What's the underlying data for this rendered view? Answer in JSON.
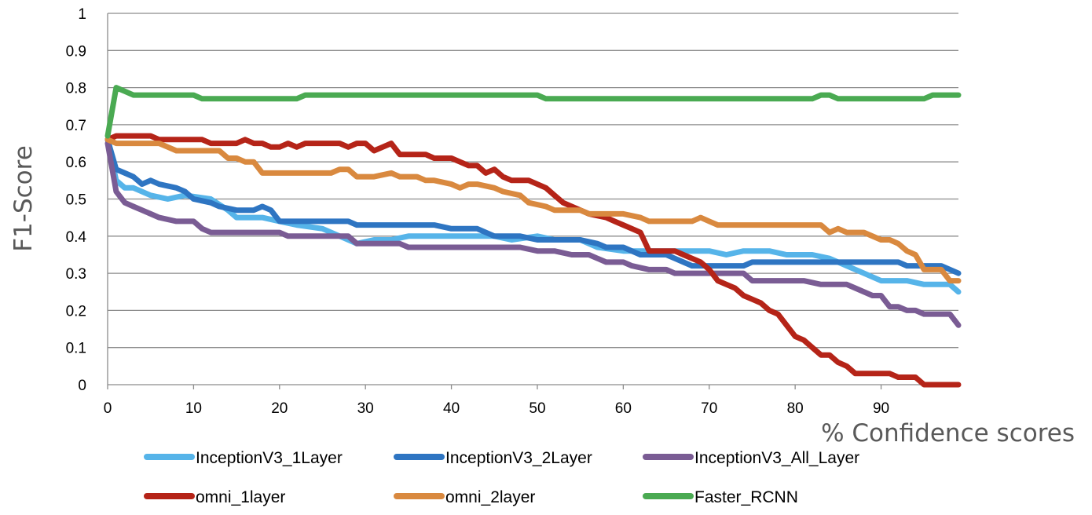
{
  "chart_data": {
    "type": "line",
    "title": "",
    "xlabel": "% Confidence scores",
    "ylabel": "F1-Score",
    "xlim": [
      0,
      99
    ],
    "ylim": [
      0,
      1
    ],
    "x_ticks": [
      "0",
      "10",
      "20",
      "30",
      "40",
      "50",
      "60",
      "70",
      "80",
      "90"
    ],
    "y_ticks": [
      "0",
      "0.1",
      "0.2",
      "0.3",
      "0.4",
      "0.5",
      "0.6",
      "0.7",
      "0.8",
      "0.9",
      "1"
    ],
    "grid": "horizontal",
    "legend_position": "bottom",
    "series": [
      {
        "name": "InceptionV3_1Layer",
        "color": "#56B4E9",
        "points": [
          [
            0,
            0.66
          ],
          [
            1,
            0.55
          ],
          [
            2,
            0.53
          ],
          [
            3,
            0.53
          ],
          [
            5,
            0.51
          ],
          [
            7,
            0.5
          ],
          [
            9,
            0.51
          ],
          [
            12,
            0.5
          ],
          [
            14,
            0.47
          ],
          [
            15,
            0.45
          ],
          [
            18,
            0.45
          ],
          [
            20,
            0.44
          ],
          [
            22,
            0.43
          ],
          [
            25,
            0.42
          ],
          [
            27,
            0.4
          ],
          [
            29,
            0.38
          ],
          [
            31,
            0.39
          ],
          [
            33,
            0.39
          ],
          [
            35,
            0.4
          ],
          [
            40,
            0.4
          ],
          [
            45,
            0.4
          ],
          [
            47,
            0.39
          ],
          [
            50,
            0.4
          ],
          [
            52,
            0.39
          ],
          [
            55,
            0.39
          ],
          [
            57,
            0.37
          ],
          [
            60,
            0.36
          ],
          [
            62,
            0.36
          ],
          [
            65,
            0.36
          ],
          [
            70,
            0.36
          ],
          [
            72,
            0.35
          ],
          [
            74,
            0.36
          ],
          [
            77,
            0.36
          ],
          [
            79,
            0.35
          ],
          [
            82,
            0.35
          ],
          [
            84,
            0.34
          ],
          [
            86,
            0.32
          ],
          [
            88,
            0.3
          ],
          [
            90,
            0.28
          ],
          [
            93,
            0.28
          ],
          [
            95,
            0.27
          ],
          [
            98,
            0.27
          ],
          [
            99,
            0.25
          ]
        ]
      },
      {
        "name": "InceptionV3_2Layer",
        "color": "#2E75C2",
        "points": [
          [
            0,
            0.66
          ],
          [
            1,
            0.58
          ],
          [
            2,
            0.57
          ],
          [
            3,
            0.56
          ],
          [
            4,
            0.54
          ],
          [
            5,
            0.55
          ],
          [
            6,
            0.54
          ],
          [
            8,
            0.53
          ],
          [
            9,
            0.52
          ],
          [
            10,
            0.5
          ],
          [
            12,
            0.49
          ],
          [
            13,
            0.48
          ],
          [
            15,
            0.47
          ],
          [
            17,
            0.47
          ],
          [
            18,
            0.48
          ],
          [
            19,
            0.47
          ],
          [
            20,
            0.44
          ],
          [
            22,
            0.44
          ],
          [
            25,
            0.44
          ],
          [
            28,
            0.44
          ],
          [
            29,
            0.43
          ],
          [
            32,
            0.43
          ],
          [
            35,
            0.43
          ],
          [
            38,
            0.43
          ],
          [
            40,
            0.42
          ],
          [
            43,
            0.42
          ],
          [
            45,
            0.4
          ],
          [
            48,
            0.4
          ],
          [
            50,
            0.39
          ],
          [
            52,
            0.39
          ],
          [
            55,
            0.39
          ],
          [
            57,
            0.38
          ],
          [
            58,
            0.37
          ],
          [
            60,
            0.37
          ],
          [
            62,
            0.35
          ],
          [
            65,
            0.35
          ],
          [
            66,
            0.34
          ],
          [
            67,
            0.33
          ],
          [
            68,
            0.32
          ],
          [
            70,
            0.32
          ],
          [
            72,
            0.32
          ],
          [
            74,
            0.32
          ],
          [
            75,
            0.33
          ],
          [
            80,
            0.33
          ],
          [
            85,
            0.33
          ],
          [
            90,
            0.33
          ],
          [
            92,
            0.33
          ],
          [
            93,
            0.32
          ],
          [
            97,
            0.32
          ],
          [
            99,
            0.3
          ]
        ]
      },
      {
        "name": "InceptionV3_All_Layer",
        "color": "#7A5C94",
        "points": [
          [
            0,
            0.65
          ],
          [
            1,
            0.52
          ],
          [
            2,
            0.49
          ],
          [
            3,
            0.48
          ],
          [
            4,
            0.47
          ],
          [
            5,
            0.46
          ],
          [
            6,
            0.45
          ],
          [
            8,
            0.44
          ],
          [
            10,
            0.44
          ],
          [
            11,
            0.42
          ],
          [
            12,
            0.41
          ],
          [
            15,
            0.41
          ],
          [
            17,
            0.41
          ],
          [
            20,
            0.41
          ],
          [
            21,
            0.4
          ],
          [
            25,
            0.4
          ],
          [
            28,
            0.4
          ],
          [
            29,
            0.38
          ],
          [
            32,
            0.38
          ],
          [
            34,
            0.38
          ],
          [
            35,
            0.37
          ],
          [
            40,
            0.37
          ],
          [
            45,
            0.37
          ],
          [
            48,
            0.37
          ],
          [
            50,
            0.36
          ],
          [
            52,
            0.36
          ],
          [
            54,
            0.35
          ],
          [
            56,
            0.35
          ],
          [
            58,
            0.33
          ],
          [
            60,
            0.33
          ],
          [
            61,
            0.32
          ],
          [
            63,
            0.31
          ],
          [
            65,
            0.31
          ],
          [
            66,
            0.3
          ],
          [
            70,
            0.3
          ],
          [
            72,
            0.3
          ],
          [
            74,
            0.3
          ],
          [
            75,
            0.28
          ],
          [
            78,
            0.28
          ],
          [
            81,
            0.28
          ],
          [
            83,
            0.27
          ],
          [
            86,
            0.27
          ],
          [
            87,
            0.26
          ],
          [
            89,
            0.24
          ],
          [
            90,
            0.24
          ],
          [
            91,
            0.21
          ],
          [
            92,
            0.21
          ],
          [
            93,
            0.2
          ],
          [
            94,
            0.2
          ],
          [
            95,
            0.19
          ],
          [
            98,
            0.19
          ],
          [
            99,
            0.16
          ]
        ]
      },
      {
        "name": "omni_1layer",
        "color": "#B52418",
        "points": [
          [
            0,
            0.66
          ],
          [
            1,
            0.67
          ],
          [
            5,
            0.67
          ],
          [
            6,
            0.66
          ],
          [
            10,
            0.66
          ],
          [
            11,
            0.66
          ],
          [
            12,
            0.65
          ],
          [
            15,
            0.65
          ],
          [
            16,
            0.66
          ],
          [
            17,
            0.65
          ],
          [
            18,
            0.65
          ],
          [
            19,
            0.64
          ],
          [
            20,
            0.64
          ],
          [
            21,
            0.65
          ],
          [
            22,
            0.64
          ],
          [
            23,
            0.65
          ],
          [
            25,
            0.65
          ],
          [
            27,
            0.65
          ],
          [
            28,
            0.64
          ],
          [
            29,
            0.65
          ],
          [
            30,
            0.65
          ],
          [
            31,
            0.63
          ],
          [
            32,
            0.64
          ],
          [
            33,
            0.65
          ],
          [
            34,
            0.62
          ],
          [
            37,
            0.62
          ],
          [
            38,
            0.61
          ],
          [
            40,
            0.61
          ],
          [
            41,
            0.6
          ],
          [
            42,
            0.59
          ],
          [
            43,
            0.59
          ],
          [
            44,
            0.57
          ],
          [
            45,
            0.58
          ],
          [
            46,
            0.56
          ],
          [
            47,
            0.55
          ],
          [
            49,
            0.55
          ],
          [
            50,
            0.54
          ],
          [
            51,
            0.53
          ],
          [
            52,
            0.51
          ],
          [
            53,
            0.49
          ],
          [
            55,
            0.47
          ],
          [
            56,
            0.46
          ],
          [
            58,
            0.45
          ],
          [
            59,
            0.44
          ],
          [
            60,
            0.43
          ],
          [
            61,
            0.42
          ],
          [
            62,
            0.41
          ],
          [
            63,
            0.36
          ],
          [
            65,
            0.36
          ],
          [
            66,
            0.36
          ],
          [
            67,
            0.35
          ],
          [
            68,
            0.34
          ],
          [
            69,
            0.33
          ],
          [
            70,
            0.31
          ],
          [
            71,
            0.28
          ],
          [
            72,
            0.27
          ],
          [
            73,
            0.26
          ],
          [
            74,
            0.24
          ],
          [
            75,
            0.23
          ],
          [
            76,
            0.22
          ],
          [
            77,
            0.2
          ],
          [
            78,
            0.19
          ],
          [
            79,
            0.16
          ],
          [
            80,
            0.13
          ],
          [
            81,
            0.12
          ],
          [
            82,
            0.1
          ],
          [
            83,
            0.08
          ],
          [
            84,
            0.08
          ],
          [
            85,
            0.06
          ],
          [
            86,
            0.05
          ],
          [
            87,
            0.03
          ],
          [
            90,
            0.03
          ],
          [
            91,
            0.03
          ],
          [
            92,
            0.02
          ],
          [
            94,
            0.02
          ],
          [
            95,
            0.0
          ],
          [
            99,
            0.0
          ]
        ]
      },
      {
        "name": "omni_2layer",
        "color": "#D9893F",
        "points": [
          [
            0,
            0.66
          ],
          [
            1,
            0.65
          ],
          [
            5,
            0.65
          ],
          [
            6,
            0.65
          ],
          [
            7,
            0.64
          ],
          [
            8,
            0.63
          ],
          [
            10,
            0.63
          ],
          [
            13,
            0.63
          ],
          [
            14,
            0.61
          ],
          [
            15,
            0.61
          ],
          [
            16,
            0.6
          ],
          [
            17,
            0.6
          ],
          [
            18,
            0.57
          ],
          [
            20,
            0.57
          ],
          [
            23,
            0.57
          ],
          [
            25,
            0.57
          ],
          [
            26,
            0.57
          ],
          [
            27,
            0.58
          ],
          [
            28,
            0.58
          ],
          [
            29,
            0.56
          ],
          [
            31,
            0.56
          ],
          [
            33,
            0.57
          ],
          [
            34,
            0.56
          ],
          [
            36,
            0.56
          ],
          [
            37,
            0.55
          ],
          [
            38,
            0.55
          ],
          [
            40,
            0.54
          ],
          [
            41,
            0.53
          ],
          [
            42,
            0.54
          ],
          [
            43,
            0.54
          ],
          [
            45,
            0.53
          ],
          [
            46,
            0.52
          ],
          [
            48,
            0.51
          ],
          [
            49,
            0.49
          ],
          [
            51,
            0.48
          ],
          [
            52,
            0.47
          ],
          [
            55,
            0.47
          ],
          [
            56,
            0.46
          ],
          [
            60,
            0.46
          ],
          [
            62,
            0.45
          ],
          [
            63,
            0.44
          ],
          [
            65,
            0.44
          ],
          [
            67,
            0.44
          ],
          [
            68,
            0.44
          ],
          [
            69,
            0.45
          ],
          [
            70,
            0.44
          ],
          [
            71,
            0.43
          ],
          [
            75,
            0.43
          ],
          [
            80,
            0.43
          ],
          [
            82,
            0.43
          ],
          [
            83,
            0.43
          ],
          [
            84,
            0.41
          ],
          [
            85,
            0.42
          ],
          [
            86,
            0.41
          ],
          [
            88,
            0.41
          ],
          [
            90,
            0.39
          ],
          [
            91,
            0.39
          ],
          [
            92,
            0.38
          ],
          [
            93,
            0.36
          ],
          [
            94,
            0.35
          ],
          [
            95,
            0.31
          ],
          [
            97,
            0.31
          ],
          [
            98,
            0.28
          ],
          [
            99,
            0.28
          ]
        ]
      },
      {
        "name": "Faster_RCNN",
        "color": "#4AAA52",
        "points": [
          [
            0,
            0.67
          ],
          [
            1,
            0.8
          ],
          [
            2,
            0.79
          ],
          [
            3,
            0.78
          ],
          [
            5,
            0.78
          ],
          [
            10,
            0.78
          ],
          [
            11,
            0.77
          ],
          [
            15,
            0.77
          ],
          [
            20,
            0.77
          ],
          [
            22,
            0.77
          ],
          [
            23,
            0.78
          ],
          [
            30,
            0.78
          ],
          [
            40,
            0.78
          ],
          [
            50,
            0.78
          ],
          [
            51,
            0.77
          ],
          [
            60,
            0.77
          ],
          [
            70,
            0.77
          ],
          [
            80,
            0.77
          ],
          [
            82,
            0.77
          ],
          [
            83,
            0.78
          ],
          [
            84,
            0.78
          ],
          [
            85,
            0.77
          ],
          [
            90,
            0.77
          ],
          [
            95,
            0.77
          ],
          [
            96,
            0.78
          ],
          [
            99,
            0.78
          ]
        ]
      }
    ]
  }
}
